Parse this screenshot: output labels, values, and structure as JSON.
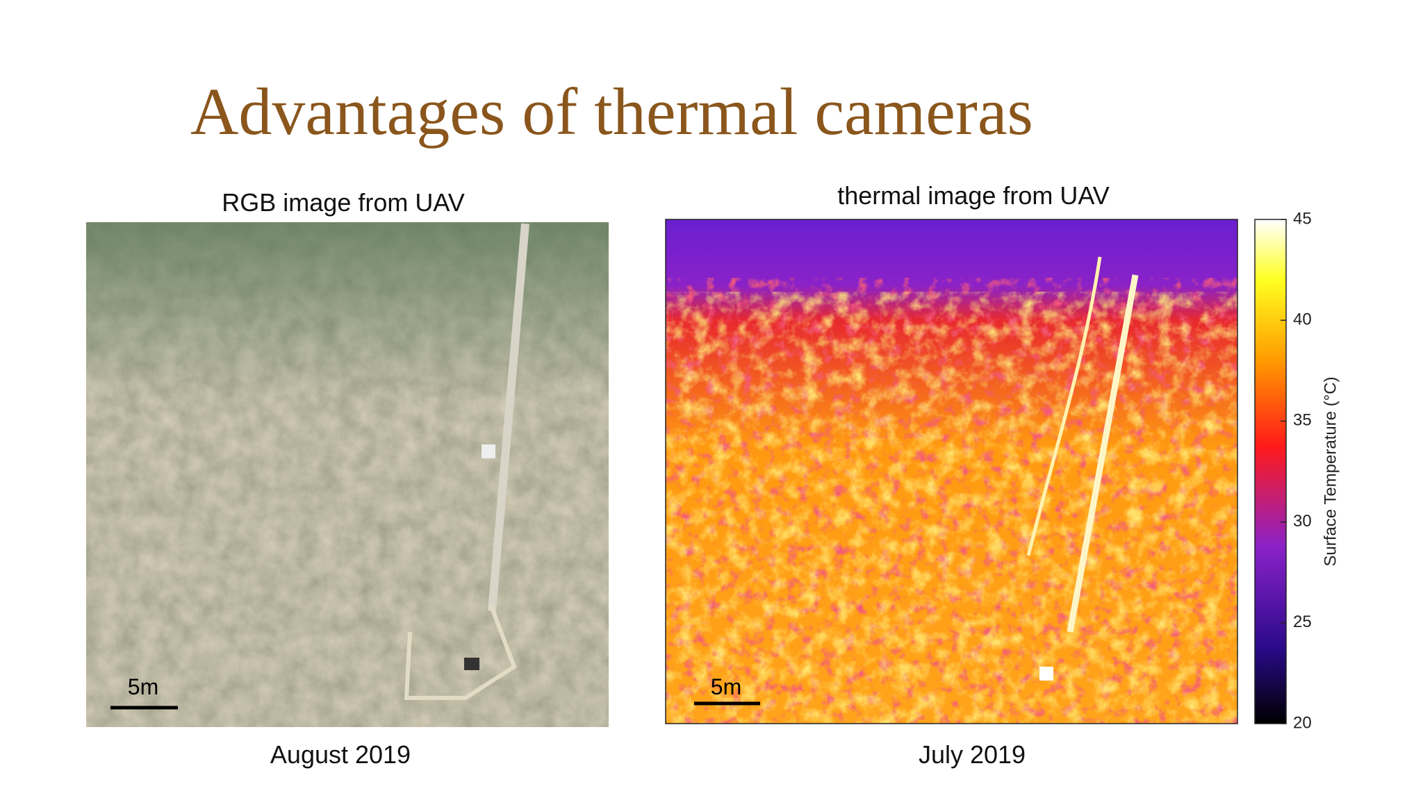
{
  "title": "Advantages of thermal cameras",
  "panels": [
    {
      "heading": "RGB image from UAV",
      "caption": "August 2019",
      "scale_label": "5m"
    },
    {
      "heading": "thermal image from UAV",
      "caption": "July 2019",
      "scale_label": "5m"
    }
  ],
  "colorbar": {
    "label": "Surface Temperature (°C)",
    "ticks": [
      20,
      25,
      30,
      35,
      40,
      45
    ]
  }
}
